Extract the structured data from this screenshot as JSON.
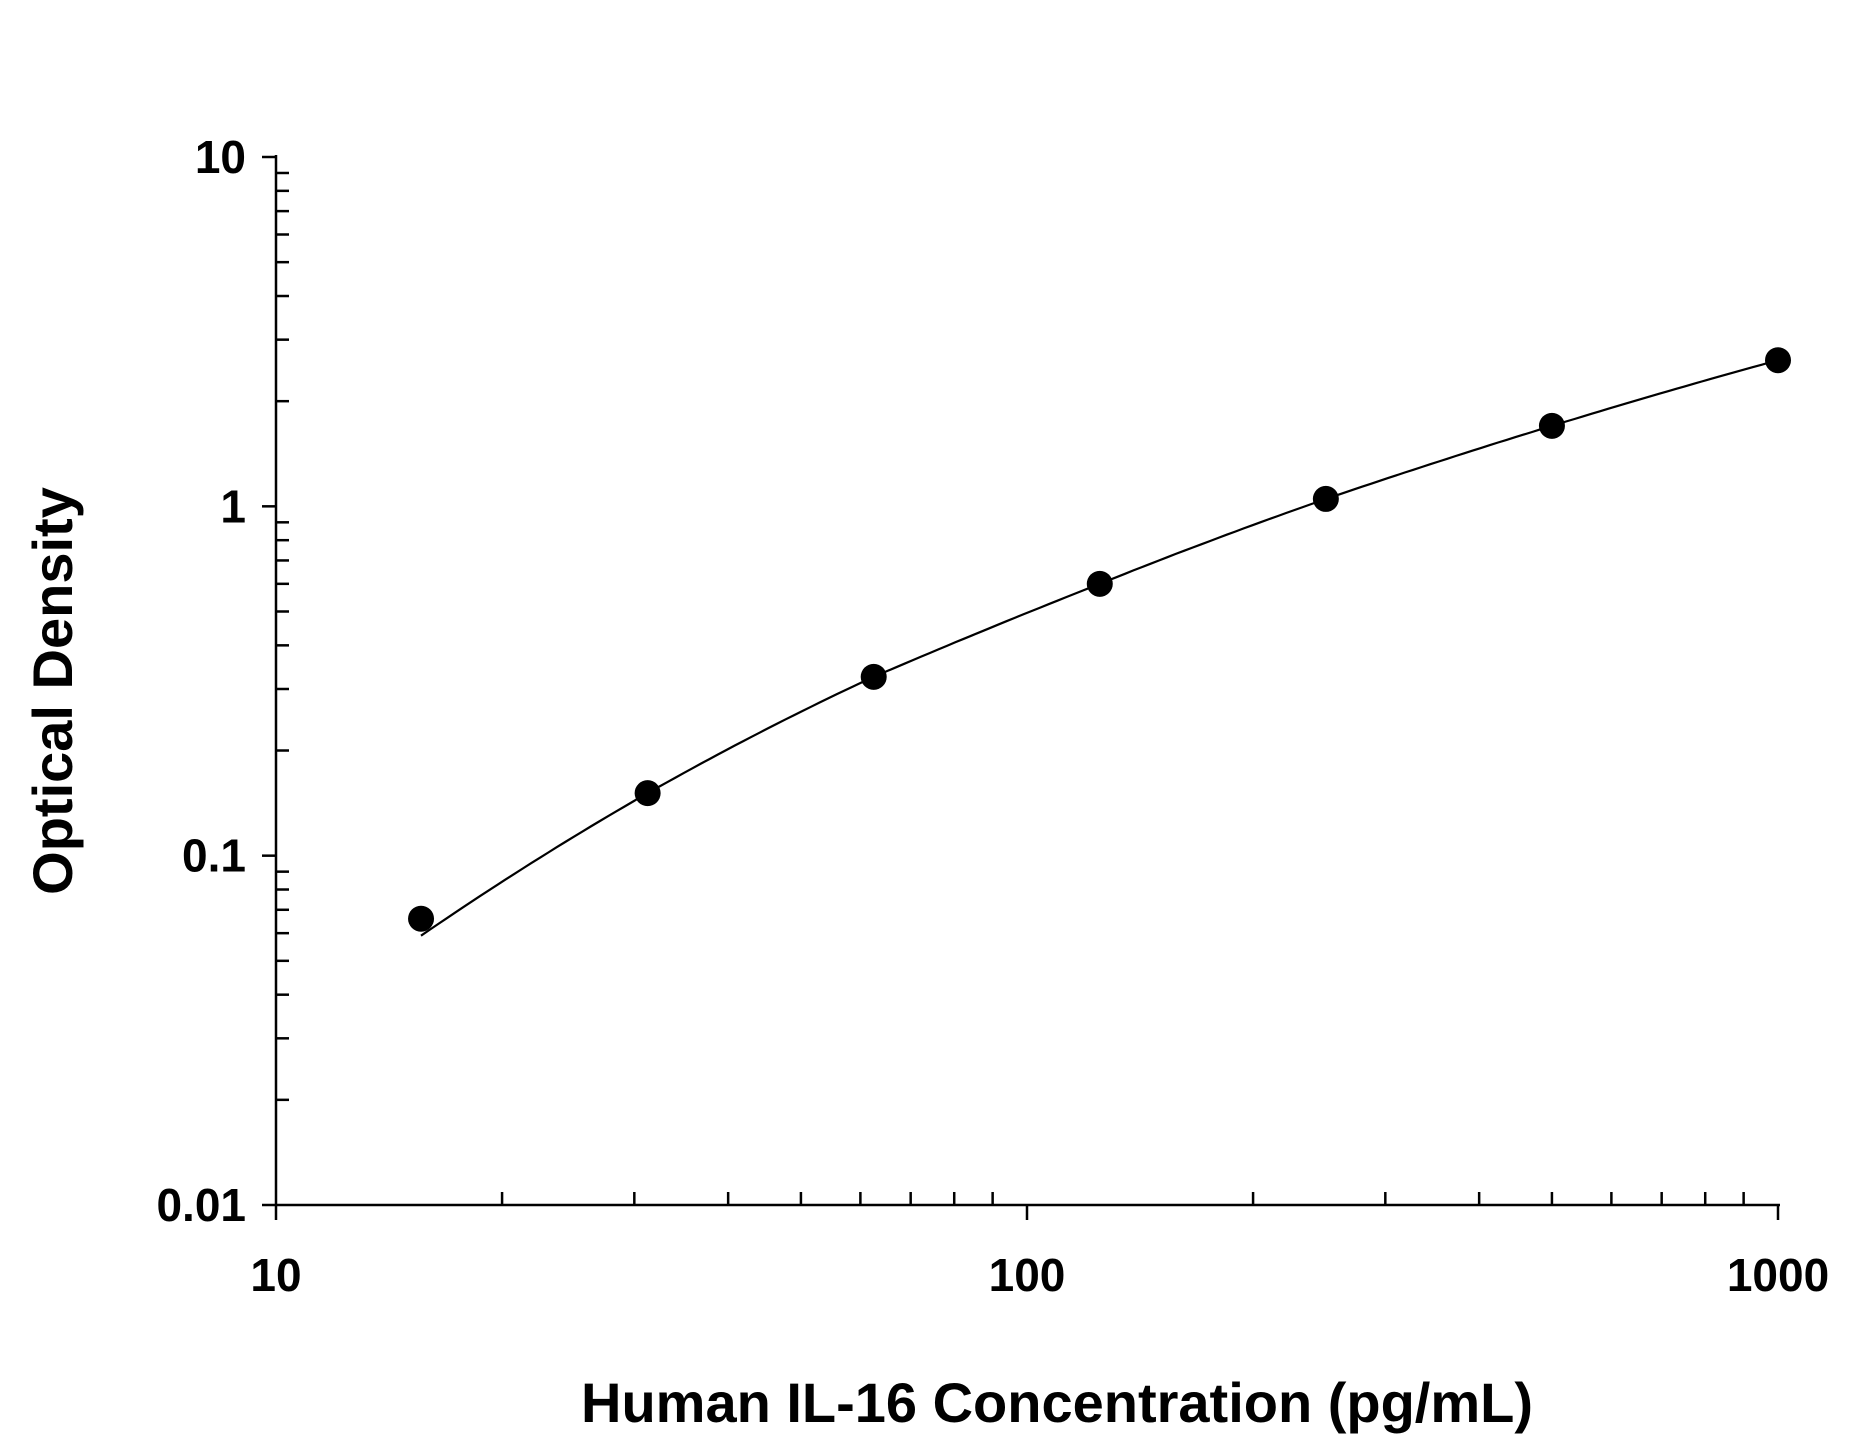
{
  "chart_data": {
    "type": "scatter",
    "title": "",
    "xlabel": "Human IL-16 Concentration (pg/mL)",
    "ylabel": "Optical Density",
    "xscale": "log",
    "yscale": "log",
    "xlim": [
      10,
      1000
    ],
    "ylim": [
      0.01,
      10
    ],
    "grid": false,
    "legend": "none",
    "x_tick_labels": [
      "10",
      "100",
      "1000"
    ],
    "y_tick_labels": [
      "0.01",
      "0.1",
      "1",
      "10"
    ],
    "series": [
      {
        "x": [
          15.6,
          31.25,
          62.5,
          125,
          250,
          500,
          1000
        ],
        "y": [
          0.066,
          0.151,
          0.325,
          0.6,
          1.05,
          1.7,
          2.62
        ]
      }
    ],
    "fit_curve": {
      "x": [
        15.6,
        31.25,
        62.5,
        125,
        250,
        500,
        1000
      ],
      "y": [
        0.059,
        0.151,
        0.325,
        0.6,
        1.05,
        1.7,
        2.62
      ]
    },
    "colors": {
      "points": "#000000",
      "line": "#000000",
      "background": "#ffffff"
    }
  }
}
